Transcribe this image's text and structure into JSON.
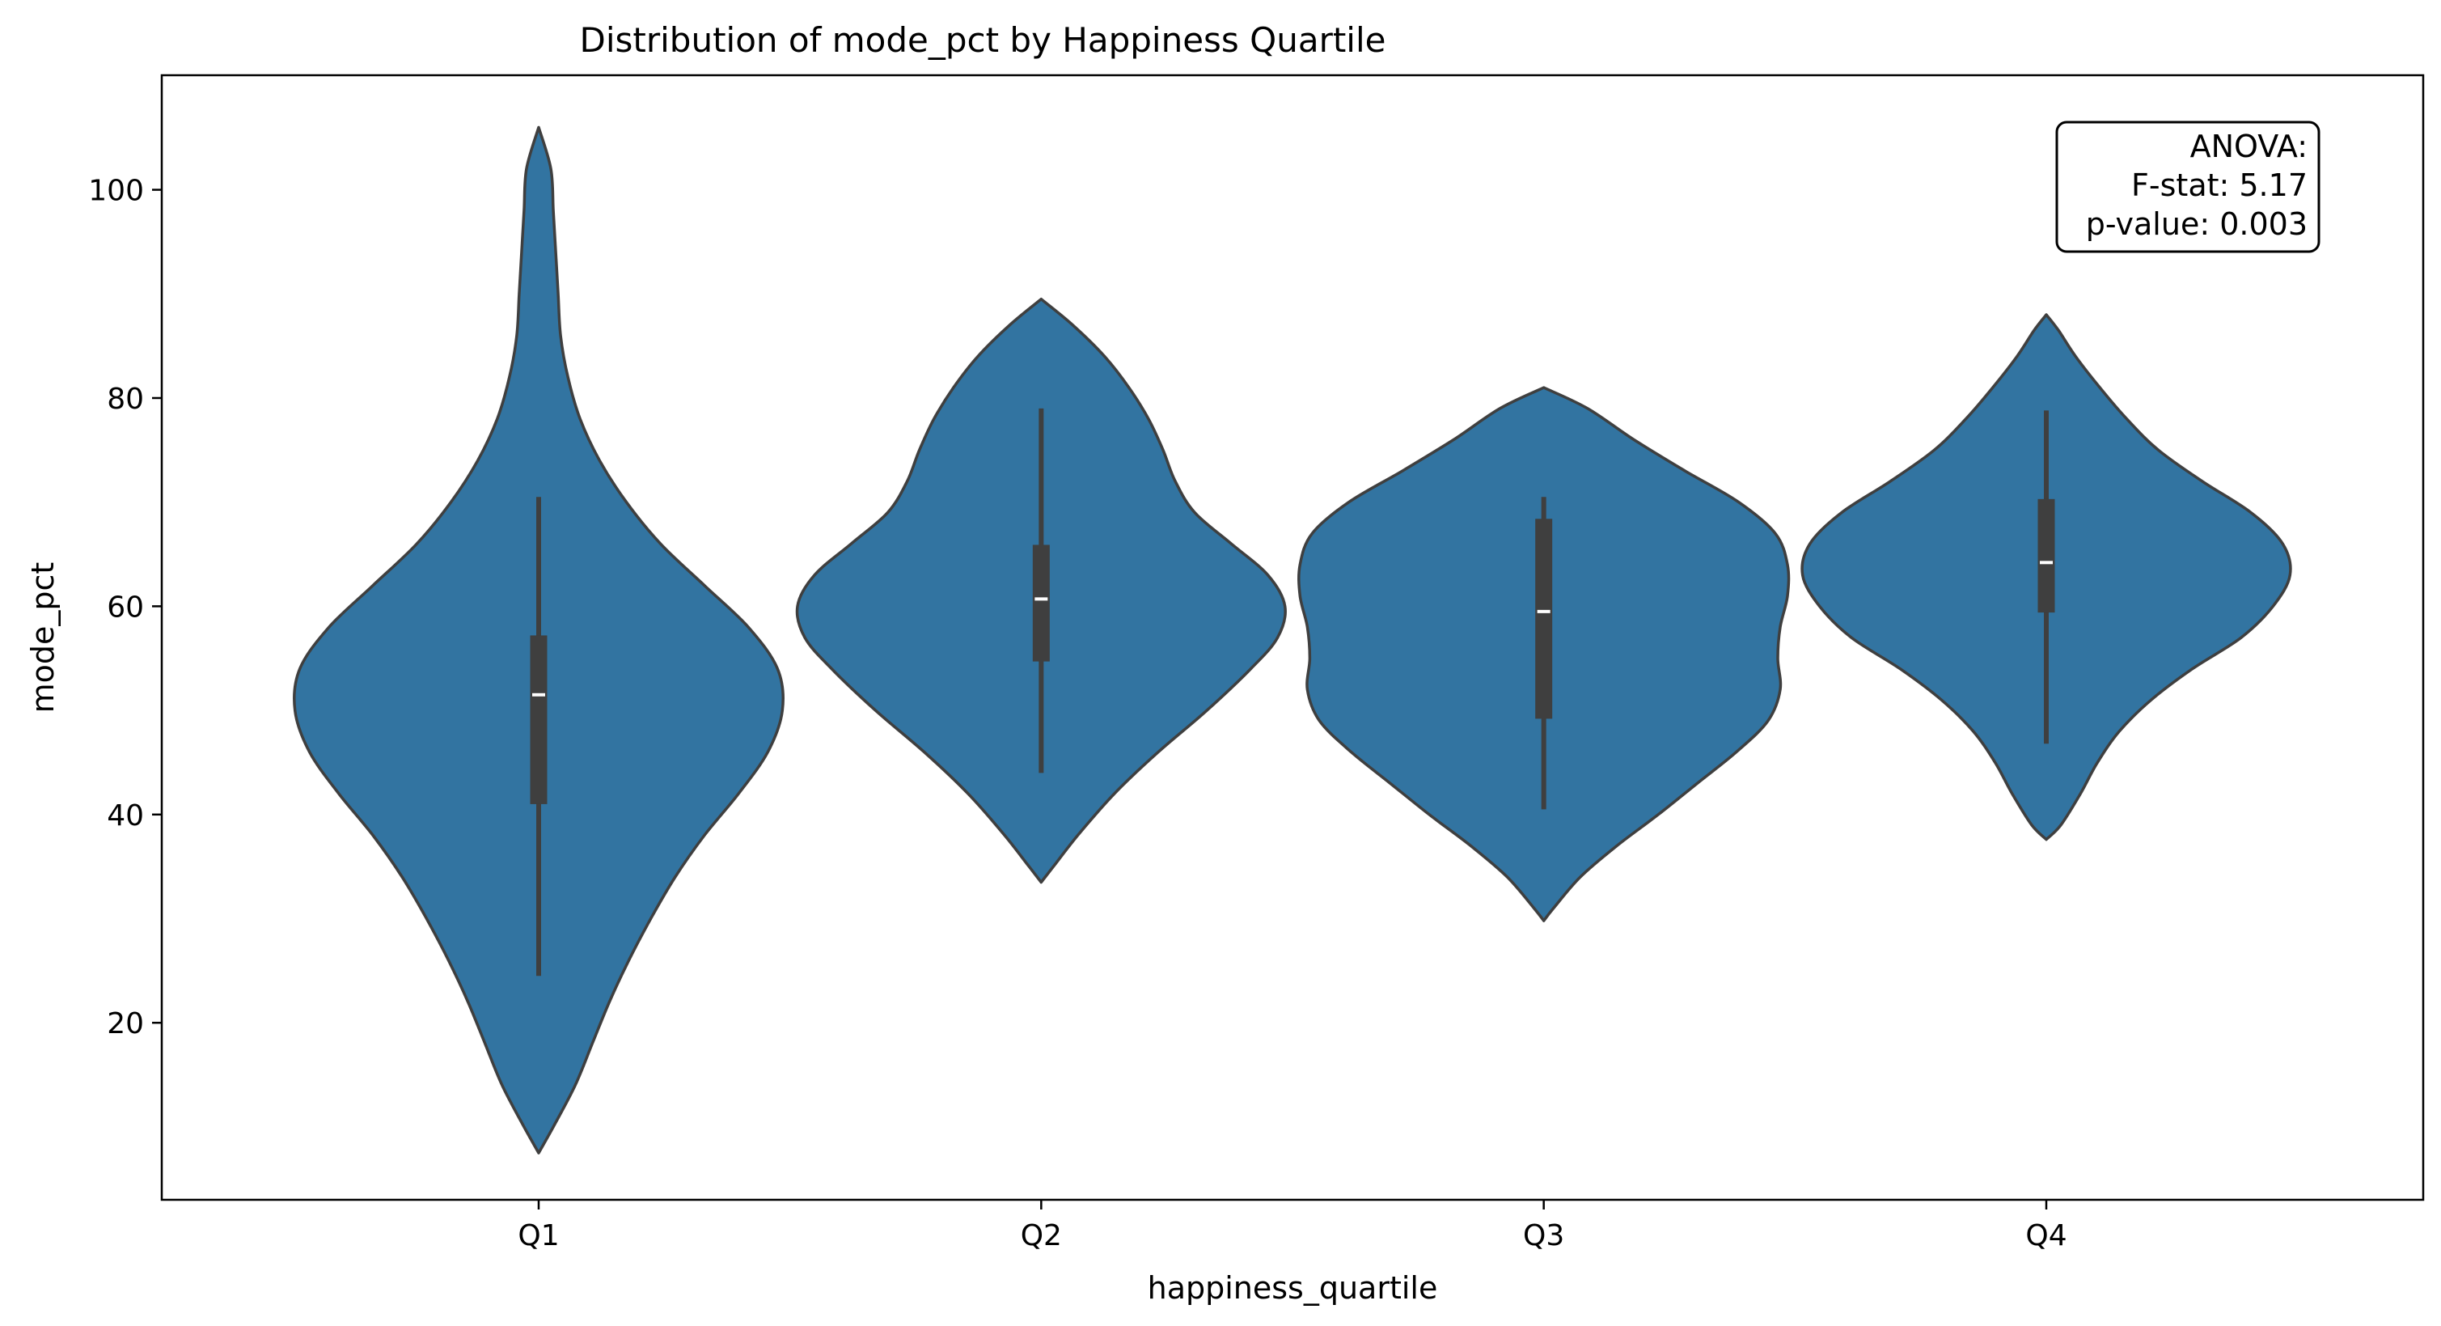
{
  "chart_data": {
    "type": "violin",
    "title": "Distribution of mode_pct by Happiness Quartile",
    "xlabel": "happiness_quartile",
    "ylabel": "mode_pct",
    "ylim": [
      3,
      111
    ],
    "yticks": [
      20,
      40,
      60,
      80,
      100
    ],
    "categories": [
      "Q1",
      "Q2",
      "Q3",
      "Q4"
    ],
    "grid": false,
    "legend": "none",
    "colors": {
      "violin_fill": "#3274a1",
      "violin_edge": "#3f3f3f",
      "box": "#3f3f3f",
      "median": "#ffffff"
    },
    "violins": [
      {
        "category": "Q1",
        "min": 7.5,
        "max": 106,
        "whisker_low": 24.5,
        "q1": 41,
        "median": 51.5,
        "q3": 57.2,
        "whisker_high": 70.5,
        "density": [
          [
            7.5,
            0.0
          ],
          [
            10,
            0.06
          ],
          [
            14,
            0.15
          ],
          [
            18,
            0.22
          ],
          [
            22,
            0.29
          ],
          [
            26,
            0.37
          ],
          [
            30,
            0.46
          ],
          [
            34,
            0.56
          ],
          [
            38,
            0.68
          ],
          [
            42,
            0.82
          ],
          [
            46,
            0.94
          ],
          [
            50,
            1.0
          ],
          [
            54,
            0.98
          ],
          [
            58,
            0.86
          ],
          [
            62,
            0.68
          ],
          [
            66,
            0.5
          ],
          [
            70,
            0.36
          ],
          [
            74,
            0.25
          ],
          [
            78,
            0.17
          ],
          [
            82,
            0.12
          ],
          [
            86,
            0.09
          ],
          [
            90,
            0.08
          ],
          [
            94,
            0.07
          ],
          [
            98,
            0.06
          ],
          [
            102,
            0.05
          ],
          [
            106,
            0.0
          ]
        ]
      },
      {
        "category": "Q2",
        "min": 33.5,
        "max": 89.5,
        "whisker_low": 44,
        "q1": 54.7,
        "median": 60.7,
        "q3": 65.9,
        "whisker_high": 79,
        "density": [
          [
            33.5,
            0.0
          ],
          [
            35,
            0.05
          ],
          [
            38,
            0.15
          ],
          [
            42,
            0.3
          ],
          [
            46,
            0.48
          ],
          [
            50,
            0.68
          ],
          [
            54,
            0.86
          ],
          [
            57,
            0.97
          ],
          [
            60,
            1.0
          ],
          [
            63,
            0.93
          ],
          [
            66,
            0.78
          ],
          [
            69,
            0.63
          ],
          [
            72,
            0.55
          ],
          [
            75,
            0.5
          ],
          [
            78,
            0.44
          ],
          [
            81,
            0.36
          ],
          [
            84,
            0.26
          ],
          [
            87,
            0.13
          ],
          [
            89.5,
            0.0
          ]
        ]
      },
      {
        "category": "Q3",
        "min": 29.8,
        "max": 81,
        "whisker_low": 40.5,
        "q1": 49.2,
        "median": 59.5,
        "q3": 68.4,
        "whisker_high": 70.5,
        "density": [
          [
            29.8,
            0.0
          ],
          [
            31,
            0.04
          ],
          [
            34,
            0.15
          ],
          [
            37,
            0.3
          ],
          [
            40,
            0.47
          ],
          [
            43,
            0.63
          ],
          [
            46,
            0.79
          ],
          [
            49,
            0.92
          ],
          [
            52,
            0.97
          ],
          [
            55,
            0.96
          ],
          [
            58,
            0.97
          ],
          [
            61,
            1.0
          ],
          [
            64,
            1.0
          ],
          [
            67,
            0.95
          ],
          [
            70,
            0.8
          ],
          [
            73,
            0.58
          ],
          [
            76,
            0.37
          ],
          [
            79,
            0.18
          ],
          [
            81,
            0.0
          ]
        ]
      },
      {
        "category": "Q4",
        "min": 37.6,
        "max": 88,
        "whisker_low": 46.8,
        "q1": 59.4,
        "median": 64.2,
        "q3": 70.3,
        "whisker_high": 78.8,
        "density": [
          [
            37.6,
            0.0
          ],
          [
            39,
            0.06
          ],
          [
            42,
            0.14
          ],
          [
            45,
            0.21
          ],
          [
            48,
            0.3
          ],
          [
            51,
            0.43
          ],
          [
            54,
            0.6
          ],
          [
            57,
            0.8
          ],
          [
            60,
            0.93
          ],
          [
            63,
            1.0
          ],
          [
            66,
            0.97
          ],
          [
            69,
            0.84
          ],
          [
            72,
            0.64
          ],
          [
            75,
            0.46
          ],
          [
            78,
            0.33
          ],
          [
            81,
            0.22
          ],
          [
            84,
            0.12
          ],
          [
            86.5,
            0.05
          ],
          [
            88,
            0.0
          ]
        ]
      }
    ],
    "annotation": {
      "lines": [
        "ANOVA:",
        "F-stat: 5.17",
        "p-value: 0.003"
      ],
      "placement": "top-right"
    }
  }
}
